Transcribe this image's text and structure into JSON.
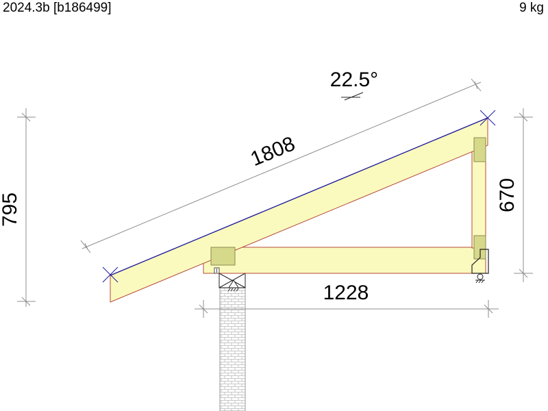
{
  "header": {
    "version": "2024.3b [b186499]",
    "mass": "9 kg"
  },
  "dimensions": {
    "rafter_length": "1808",
    "overall_height": "795",
    "post_height": "670",
    "span": "1228",
    "pitch": "22.5°"
  },
  "colors": {
    "timber_fill": "#fafabe",
    "timber_edge": "#b5483a",
    "top_edge": "#1a1a9e",
    "connector_fill": "#d7d98a",
    "connector_edge": "#8a8a52",
    "dimension_line": "#8c8c8c",
    "wall": "#9a9a9a"
  }
}
